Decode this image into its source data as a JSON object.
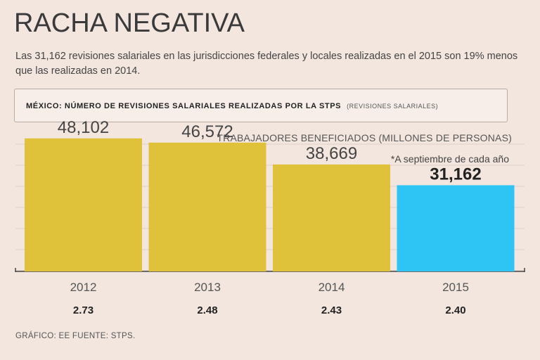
{
  "header": {
    "title": "RACHA NEGATIVA",
    "subtitle": "Las 31,162 revisiones salariales en las jurisdicciones federales y locales realizadas en el 2015 son 19% menos que las realizadas en 2014."
  },
  "panel": {
    "title": "MÉXICO: NÚMERO DE REVISIONES SALARIALES REALIZADAS POR LA STPS",
    "unit": "(REVISIONES SALARIALES)"
  },
  "secondary_label": "TRABAJADORES BENEFICIADOS (MILLONES DE PERSONAS)",
  "footnote": "*A septiembre de cada año",
  "source": "GRÁFICO: EE  FUENTE: STPS.",
  "colors": {
    "bar": "#e0c23a",
    "highlight": "#2ec5f5",
    "grid": "#ddd0c9",
    "axis": "#444444"
  },
  "chart_data": {
    "type": "bar",
    "title": "MÉXICO: NÚMERO DE REVISIONES SALARIALES REALIZADAS POR LA STPS",
    "categories": [
      "2012",
      "2013",
      "2014",
      "2015"
    ],
    "series": [
      {
        "name": "Revisiones salariales",
        "values": [
          48102,
          46572,
          38669,
          31162
        ],
        "labels": [
          "48,102",
          "46,572",
          "38,669",
          "31,162"
        ]
      },
      {
        "name": "Trabajadores beneficiados (millones de personas)",
        "values": [
          2.73,
          2.48,
          2.43,
          2.4
        ],
        "labels": [
          "2.73",
          "2.48",
          "2.43",
          "2.40"
        ]
      }
    ],
    "highlight_index": 3,
    "ylim": [
      0,
      50000
    ],
    "grid": true,
    "xlabel": "",
    "ylabel": ""
  }
}
